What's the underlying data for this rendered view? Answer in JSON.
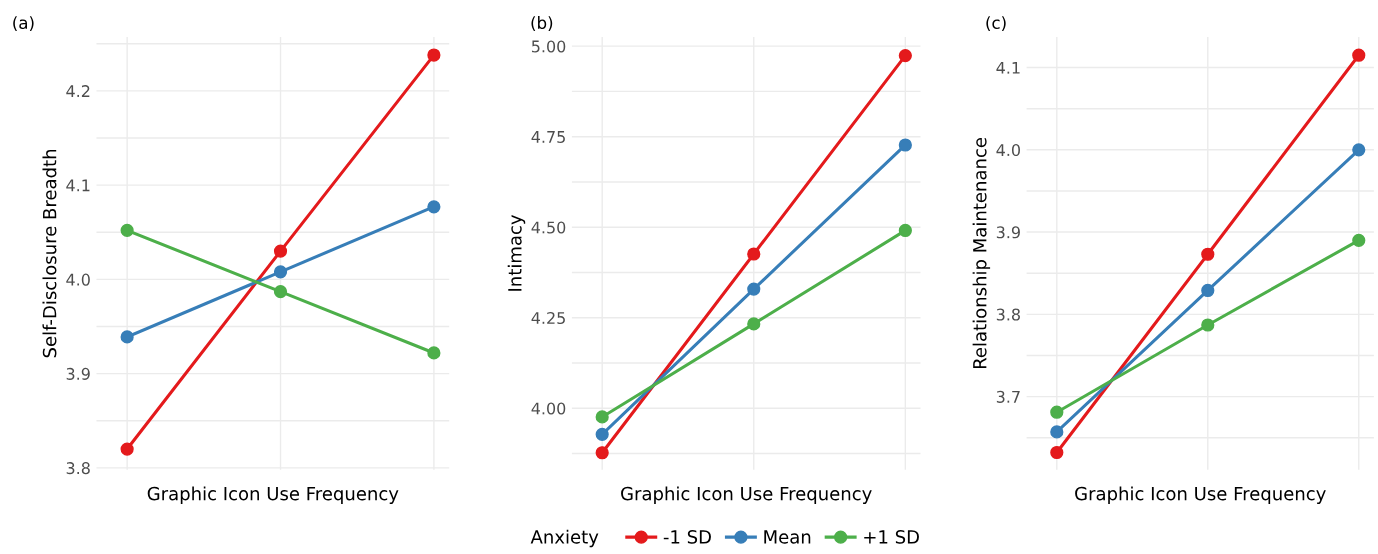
{
  "chart_data": [
    {
      "type": "line",
      "title": "(a)",
      "xlabel": "Graphic Icon Use Frequency",
      "ylabel": "Self-Disclosure Breadth",
      "categories": [
        null,
        null,
        null
      ],
      "ylim": [
        3.798,
        4.257
      ],
      "yticks": [
        3.8,
        {
          "value": 3.85,
          "label": null
        },
        3.9,
        {
          "value": 3.95,
          "label": null
        },
        {
          "value": 4.0,
          "label": "4.0"
        },
        {
          "value": 4.05,
          "label": null
        },
        4.1,
        {
          "value": 4.15,
          "label": null
        },
        4.2,
        {
          "value": 4.25,
          "label": null
        }
      ],
      "tick_labels": "y",
      "grid": true,
      "marker": "circle",
      "line_style": "solid",
      "legend": "bottom",
      "legend_title": "Anxiety",
      "series": [
        {
          "name": "-1 SD",
          "color": "#e41a1c",
          "values": [
            3.82,
            4.03,
            4.238
          ]
        },
        {
          "name": "Mean",
          "color": "#377eb8",
          "values": [
            3.939,
            4.008,
            4.077
          ]
        },
        {
          "name": "+1 SD",
          "color": "#4daf4a",
          "values": [
            4.052,
            3.987,
            3.922
          ]
        }
      ]
    },
    {
      "type": "line",
      "title": "(b)",
      "xlabel": "Graphic Icon Use Frequency",
      "ylabel": "Intimacy",
      "categories": [
        null,
        null,
        null
      ],
      "ylim": [
        3.83,
        5.025
      ],
      "yticks": [
        {
          "value": 3.875,
          "label": null
        },
        {
          "value": 4.0,
          "label": "4.00"
        },
        {
          "value": 4.125,
          "label": null
        },
        {
          "value": 4.25,
          "label": "4.25"
        },
        {
          "value": 4.375,
          "label": null
        },
        {
          "value": 4.5,
          "label": "4.50"
        },
        {
          "value": 4.625,
          "label": null
        },
        {
          "value": 4.75,
          "label": "4.75"
        },
        {
          "value": 4.875,
          "label": null
        },
        {
          "value": 5.0,
          "label": "5.00"
        }
      ],
      "tick_labels": "y",
      "grid": true,
      "marker": "circle",
      "line_style": "solid",
      "series": [
        {
          "color": "#e41a1c",
          "values": [
            3.877,
            4.426,
            4.974
          ]
        },
        {
          "color": "#377eb8",
          "values": [
            3.928,
            4.329,
            4.727
          ]
        },
        {
          "color": "#4daf4a",
          "values": [
            3.976,
            4.233,
            4.491
          ]
        }
      ]
    },
    {
      "type": "line",
      "title": "(c)",
      "xlabel": "Graphic Icon Use Frequency",
      "ylabel": "Relationship Maintenance",
      "categories": [
        null,
        null,
        null
      ],
      "ylim": [
        3.611,
        4.137
      ],
      "yticks": [
        {
          "value": 3.65,
          "label": null
        },
        3.7,
        {
          "value": 3.75,
          "label": null
        },
        3.8,
        {
          "value": 3.85,
          "label": null
        },
        3.9,
        {
          "value": 3.95,
          "label": null
        },
        {
          "value": 4.0,
          "label": "4.0"
        },
        {
          "value": 4.05,
          "label": null
        },
        4.1
      ],
      "tick_labels": "y",
      "grid": true,
      "marker": "circle",
      "line_style": "solid",
      "series": [
        {
          "color": "#e41a1c",
          "values": [
            3.632,
            3.873,
            4.115
          ]
        },
        {
          "color": "#377eb8",
          "values": [
            3.657,
            3.829,
            4.0
          ]
        },
        {
          "color": "#4daf4a",
          "values": [
            3.681,
            3.787,
            3.89
          ]
        }
      ]
    }
  ]
}
